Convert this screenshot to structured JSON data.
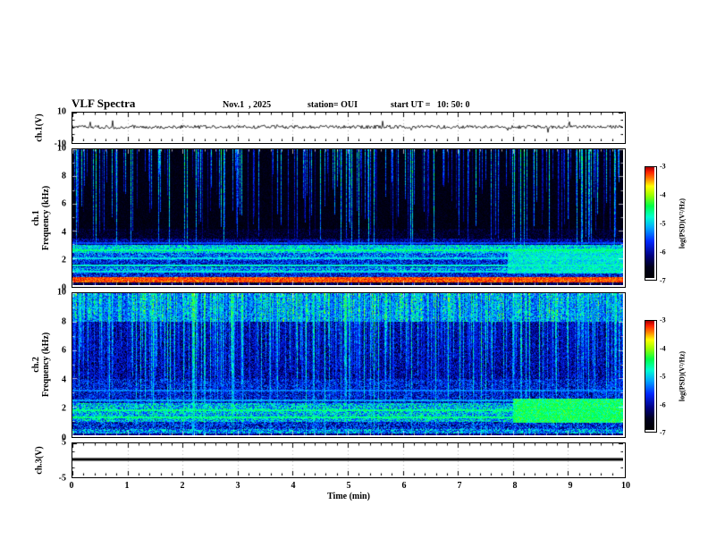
{
  "header": {
    "title": "VLF Spectra",
    "date": "Nov.1  , 2025",
    "station": "station= OUI",
    "start_ut": "start UT =   10: 50: 0"
  },
  "xaxis": {
    "label": "Time (min)",
    "min": 0,
    "max": 10,
    "ticks": [
      0,
      1,
      2,
      3,
      4,
      5,
      6,
      7,
      8,
      9,
      10
    ],
    "minor_per_major": 5
  },
  "colormap": {
    "stops": [
      {
        "p": 0.0,
        "c": "#000005"
      },
      {
        "p": 0.1,
        "c": "#00001e"
      },
      {
        "p": 0.2,
        "c": "#000080"
      },
      {
        "p": 0.33,
        "c": "#0028ff"
      },
      {
        "p": 0.45,
        "c": "#00a8ff"
      },
      {
        "p": 0.55,
        "c": "#00ffd0"
      },
      {
        "p": 0.65,
        "c": "#00ff48"
      },
      {
        "p": 0.75,
        "c": "#a0ff00"
      },
      {
        "p": 0.83,
        "c": "#ffff00"
      },
      {
        "p": 0.9,
        "c": "#ff8000"
      },
      {
        "p": 0.96,
        "c": "#ff2000"
      },
      {
        "p": 1.0,
        "c": "#b00000"
      }
    ]
  },
  "chart_data": [
    {
      "id": "ch1-waveform",
      "type": "line",
      "ylabel": "ch.1(V)",
      "ylim": [
        -10,
        10
      ],
      "ytick_labels": [
        10,
        -10
      ],
      "xlim": [
        0,
        10
      ],
      "description": "Broadband noise waveform centered on 0 V, peak amplitude about ±1.5 V, constant over the full 10 minutes",
      "render": {
        "seed": 7,
        "amplitude_v": 1.2,
        "spike_amplitude_v": 4,
        "spike_prob": 0.03
      }
    },
    {
      "id": "ch1-spectrogram",
      "type": "heatmap",
      "ylabel_lines": [
        "ch.1",
        "Frequency (kHz)"
      ],
      "ylim": [
        0,
        10
      ],
      "yticks": [
        0,
        2,
        4,
        6,
        8,
        10
      ],
      "xlim": [
        0,
        10
      ],
      "colorbar": {
        "label": "log(PSD)(V²/Hz)",
        "ticks": [
          -3,
          -4,
          -5,
          -6,
          -7
        ],
        "min": -7,
        "max": -3
      },
      "description": "Quiet (near-black) above 4 kHz crossed by vertical sferic streaks; banded emission lines between 1 and 3 kHz; strong red band near 0.3-0.7 kHz; enhanced cyan-green patch 1-2.7 kHz after about 7.9 min",
      "render": {
        "seed": 42,
        "base": 0.055,
        "streak_density": 0.3,
        "streak_gain": 0.72,
        "depth_min": 0.15,
        "depth_rand": 0.55,
        "bands": [
          {
            "f0": 0.0,
            "f1": 0.2,
            "v": 0.14,
            "noise": 0.1
          },
          {
            "f0": 0.2,
            "f1": 0.65,
            "v": 0.93,
            "noise": 0.06
          },
          {
            "f0": 0.65,
            "f1": 0.95,
            "v": 0.3,
            "noise": 0.15
          },
          {
            "f0": 0.95,
            "f1": 1.35,
            "v": 0.42,
            "noise": 0.18
          },
          {
            "f0": 1.35,
            "f1": 1.85,
            "v": 0.3,
            "noise": 0.15
          },
          {
            "f0": 1.85,
            "f1": 2.4,
            "v": 0.38,
            "noise": 0.18
          },
          {
            "f0": 2.4,
            "f1": 3.0,
            "v": 0.5,
            "noise": 0.15
          },
          {
            "f0": 3.0,
            "f1": 3.45,
            "v": 0.2,
            "noise": 0.12
          },
          {
            "f0": 3.45,
            "f1": 4.2,
            "v": 0.1,
            "noise": 0.08
          },
          {
            "f0": 4.2,
            "f1": 10.01,
            "v": 0.06,
            "noise": 0.06
          }
        ],
        "hlines": [
          {
            "f": 1.0,
            "v": 0.5
          },
          {
            "f": 1.5,
            "v": 0.55
          },
          {
            "f": 2.0,
            "v": 0.5
          },
          {
            "f": 2.6,
            "v": 0.6
          },
          {
            "f": 3.1,
            "v": 0.35
          }
        ],
        "patch": {
          "x0": 7.9,
          "x1": 10,
          "f0": 0.9,
          "f1": 2.7,
          "v": 0.52
        }
      }
    },
    {
      "id": "ch2-spectrogram",
      "type": "heatmap",
      "ylabel_lines": [
        "ch.2",
        "Frequency (kHz)"
      ],
      "ylim": [
        0,
        10
      ],
      "yticks": [
        0,
        2,
        4,
        6,
        8,
        10
      ],
      "xlim": [
        0,
        10
      ],
      "colorbar": {
        "label": "log(PSD)(V²/Hz)",
        "ticks": [
          -3,
          -4,
          -5,
          -6,
          -7
        ],
        "min": -7,
        "max": -3
      },
      "description": "Much noisier channel: dense green-yellow sferic streaks over a blue background, brightest band above 8 kHz, green emission band 1-2.3 kHz, enhanced green patch 1-2.6 kHz after about 8 min",
      "render": {
        "seed": 1337,
        "base": 0.2,
        "streak_density": 0.55,
        "streak_gain": 0.8,
        "depth_min": 0.35,
        "depth_rand": 0.65,
        "top_band": {
          "f0": 8.0,
          "v": 0.8
        },
        "bands": [
          {
            "f0": 0.0,
            "f1": 0.15,
            "v": 0.2,
            "noise": 0.1
          },
          {
            "f0": 0.15,
            "f1": 0.5,
            "v": 0.42,
            "noise": 0.2
          },
          {
            "f0": 0.5,
            "f1": 0.95,
            "v": 0.3,
            "noise": 0.18
          },
          {
            "f0": 0.95,
            "f1": 2.3,
            "v": 0.48,
            "noise": 0.2
          },
          {
            "f0": 2.3,
            "f1": 4.0,
            "v": 0.28,
            "noise": 0.16
          },
          {
            "f0": 4.0,
            "f1": 8.0,
            "v": 0.22,
            "noise": 0.14
          },
          {
            "f0": 8.0,
            "f1": 10.01,
            "v": 0.3,
            "noise": 0.18
          }
        ],
        "hlines": [
          {
            "f": 1.3,
            "v": 0.6
          },
          {
            "f": 1.8,
            "v": 0.6
          },
          {
            "f": 2.5,
            "v": 0.45
          },
          {
            "f": 3.2,
            "v": 0.4
          }
        ],
        "patch": {
          "x0": 8.0,
          "x1": 10,
          "f0": 0.9,
          "f1": 2.6,
          "v": 0.62
        }
      }
    },
    {
      "id": "ch3-waveform",
      "type": "line",
      "ylabel": "ch.3(V)",
      "ylim": [
        -5,
        5
      ],
      "ytick_labels": [
        5,
        -5
      ],
      "xlim": [
        0,
        10
      ],
      "description": "Flat line at 0 V for the full 10 minute record (no signal)",
      "render": {
        "seed": 3,
        "flat": true,
        "value_v": 0,
        "thickness_px": 3
      }
    }
  ]
}
